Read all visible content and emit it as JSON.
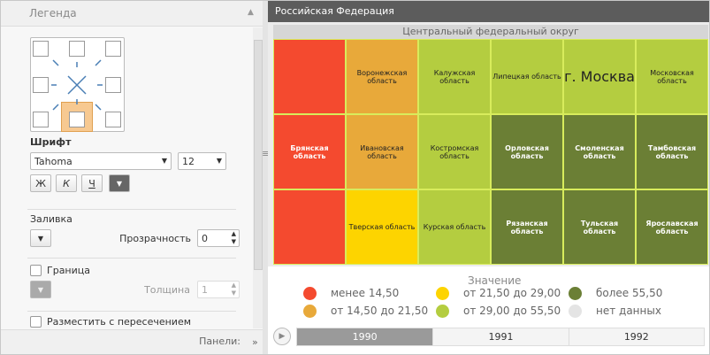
{
  "left_panel": {
    "title": "Легенда",
    "font": {
      "label": "Шрифт",
      "family": "Tahoma",
      "size": "12",
      "buttons": [
        "Ж",
        "К",
        "Ч"
      ]
    },
    "fill": {
      "label": "Заливка",
      "opacity_label": "Прозрачность",
      "opacity": "0"
    },
    "border": {
      "label": "Граница",
      "width_label": "Толщина",
      "width": "1"
    },
    "overlap": {
      "label": "Разместить с пересечением"
    },
    "footer": "Панели:"
  },
  "map": {
    "title": "Российская Федерация",
    "group": "Центральный федеральный округ",
    "columns": 6,
    "cells": [
      {
        "label": null,
        "color": "#f44a2f"
      },
      {
        "label": "Воронежская область",
        "color": "#e8a93a"
      },
      {
        "label": "Калужская область",
        "color": "#b4cd40"
      },
      {
        "label": "Липецкая область",
        "color": "#b4cd40"
      },
      {
        "label": "г. Москва",
        "color": "#b4cd40",
        "emphasis": true
      },
      {
        "label": "Московская область",
        "color": "#b4cd40"
      },
      {
        "label": "Брянская область",
        "color": "#f44a2f"
      },
      {
        "label": "Ивановская область",
        "color": "#e8a93a"
      },
      {
        "label": "Костромская область",
        "color": "#b4cd40"
      },
      {
        "label": "Орловская область",
        "color": "#6b7f35"
      },
      {
        "label": "Смоленская область",
        "color": "#6b7f35"
      },
      {
        "label": "Тамбовская область",
        "color": "#6b7f35"
      },
      {
        "label": null,
        "color": "#f44a2f"
      },
      {
        "label": "Тверская область",
        "color": "#fdd400"
      },
      {
        "label": "Курская область",
        "color": "#b4cd40"
      },
      {
        "label": "Рязанская область",
        "color": "#6b7f35"
      },
      {
        "label": "Тульская область",
        "color": "#6b7f35"
      },
      {
        "label": "Ярославская область",
        "color": "#6b7f35"
      }
    ]
  },
  "legend": {
    "title": "Значение",
    "items": [
      {
        "label": "менее 14,50",
        "color": "#f44a2f"
      },
      {
        "label": "от 14,50 до 21,50",
        "color": "#e8a93a"
      },
      {
        "label": "от 21,50 до 29,00",
        "color": "#fdd400"
      },
      {
        "label": "от 29,00 до 55,50",
        "color": "#b4cd40"
      },
      {
        "label": "более 55,50",
        "color": "#6b7f35"
      },
      {
        "label": "нет данных",
        "color": "#e4e4e4"
      }
    ]
  },
  "timeline": {
    "years": [
      "1990",
      "1991",
      "1992"
    ],
    "selected": 0
  }
}
